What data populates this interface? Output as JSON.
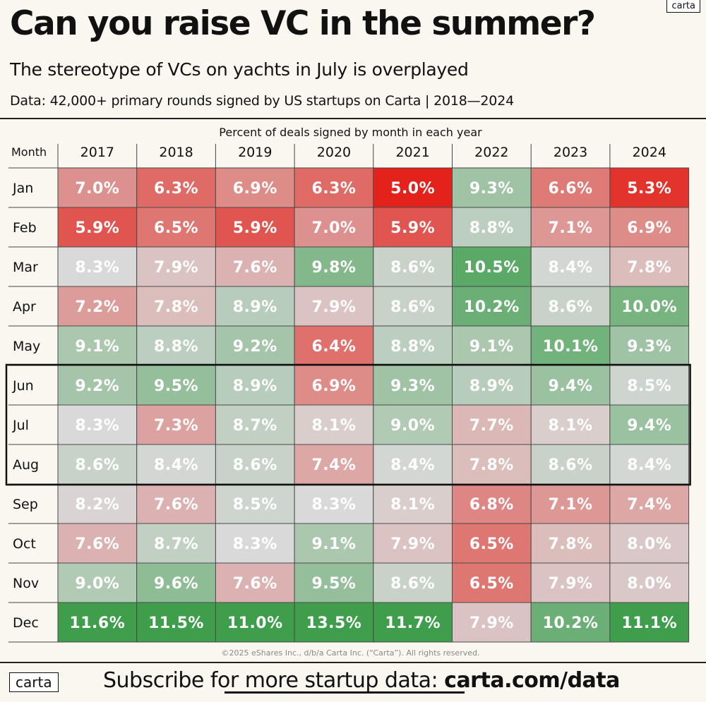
{
  "brand": "carta",
  "title": "Can you raise VC in the summer?",
  "subtitle": "The stereotype of VCs on yachts in July is overplayed",
  "source": "Data: 42,000+ primary rounds signed by US startups on Carta | 2018—2024",
  "copyright": "©2025 eShares Inc., d/b/a Carta Inc. (“Carta”). All rights reserved.",
  "footer": {
    "logo": "carta",
    "subscribe_text": "Subscribe for more startup data: ",
    "link": "carta.com/data"
  },
  "colors": {
    "low": "#e3231b",
    "mid": "#d9d9d9",
    "high": "#3e9e4c",
    "background": "#faf6f0"
  },
  "chart_data": {
    "type": "heatmap",
    "title": "Percent of deals signed by month in each year",
    "row_header": "Month",
    "columns": [
      "2017",
      "2018",
      "2019",
      "2020",
      "2021",
      "2022",
      "2023",
      "2024"
    ],
    "rows": [
      "Jan",
      "Feb",
      "Mar",
      "Apr",
      "May",
      "Jun",
      "Jul",
      "Aug",
      "Sep",
      "Oct",
      "Nov",
      "Dec"
    ],
    "unit": "%",
    "values": [
      [
        7.0,
        6.3,
        6.9,
        6.3,
        5.0,
        9.3,
        6.6,
        5.3
      ],
      [
        5.9,
        6.5,
        5.9,
        7.0,
        5.9,
        8.8,
        7.1,
        6.9
      ],
      [
        8.3,
        7.9,
        7.6,
        9.8,
        8.6,
        10.5,
        8.4,
        7.8
      ],
      [
        7.2,
        7.8,
        8.9,
        7.9,
        8.6,
        10.2,
        8.6,
        10.0
      ],
      [
        9.1,
        8.8,
        9.2,
        6.4,
        8.8,
        9.1,
        10.1,
        9.3
      ],
      [
        9.2,
        9.5,
        8.9,
        6.9,
        9.3,
        8.9,
        9.4,
        8.5
      ],
      [
        8.3,
        7.3,
        8.7,
        8.1,
        9.0,
        7.7,
        8.1,
        9.4
      ],
      [
        8.6,
        8.4,
        8.6,
        7.4,
        8.4,
        7.8,
        8.6,
        8.4
      ],
      [
        8.2,
        7.6,
        8.5,
        8.3,
        8.1,
        6.8,
        7.1,
        7.4
      ],
      [
        7.6,
        8.7,
        8.3,
        9.1,
        7.9,
        6.5,
        7.8,
        8.0
      ],
      [
        9.0,
        9.6,
        7.6,
        9.5,
        8.6,
        6.5,
        7.9,
        8.0
      ],
      [
        11.6,
        11.5,
        11.0,
        13.5,
        11.7,
        7.9,
        10.2,
        11.1
      ]
    ],
    "highlighted_rows": [
      "Jun",
      "Jul",
      "Aug"
    ]
  }
}
